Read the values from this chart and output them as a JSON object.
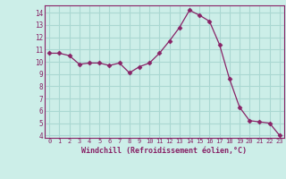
{
  "x": [
    0,
    1,
    2,
    3,
    4,
    5,
    6,
    7,
    8,
    9,
    10,
    11,
    12,
    13,
    14,
    15,
    16,
    17,
    18,
    19,
    20,
    21,
    22,
    23
  ],
  "y": [
    10.7,
    10.7,
    10.5,
    9.8,
    9.9,
    9.9,
    9.7,
    9.9,
    9.1,
    9.6,
    9.9,
    10.7,
    11.7,
    12.8,
    14.2,
    13.8,
    13.3,
    11.4,
    8.6,
    6.3,
    5.2,
    5.1,
    5.0,
    4.0
  ],
  "line_color": "#882266",
  "marker": "D",
  "marker_size": 2.5,
  "bg_color": "#cceee8",
  "grid_color": "#aad8d2",
  "tick_color": "#882266",
  "label_color": "#882266",
  "xlabel": "Windchill (Refroidissement éolien,°C)",
  "ylim": [
    3.8,
    14.6
  ],
  "xlim": [
    -0.5,
    23.5
  ],
  "yticks": [
    4,
    5,
    6,
    7,
    8,
    9,
    10,
    11,
    12,
    13,
    14
  ],
  "xticks": [
    0,
    1,
    2,
    3,
    4,
    5,
    6,
    7,
    8,
    9,
    10,
    11,
    12,
    13,
    14,
    15,
    16,
    17,
    18,
    19,
    20,
    21,
    22,
    23
  ]
}
